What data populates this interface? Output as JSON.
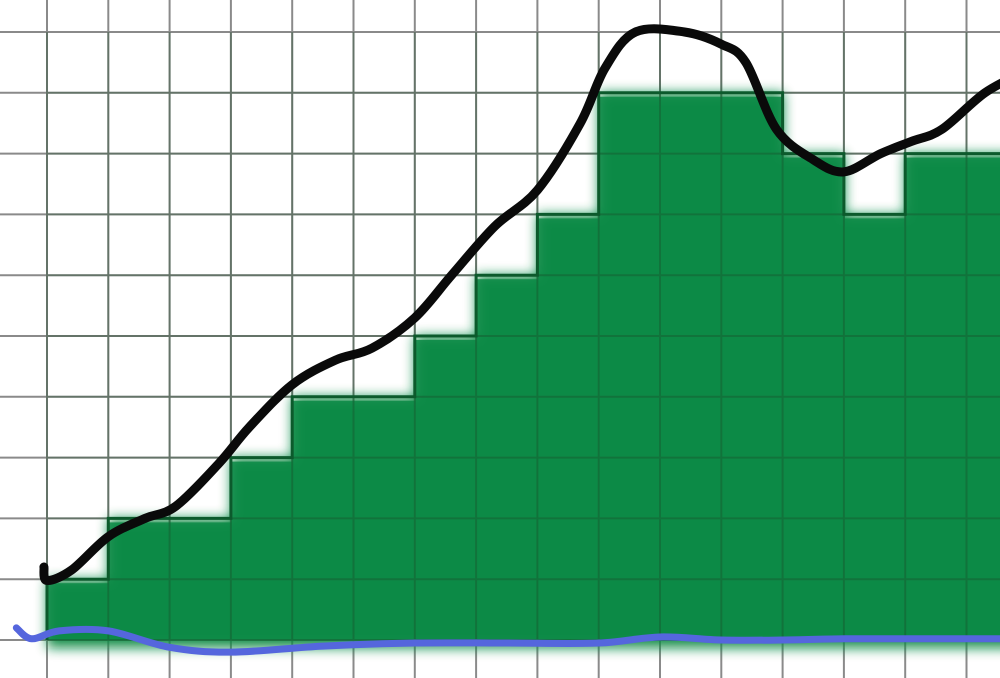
{
  "chart_data": {
    "type": "area",
    "grid": true,
    "grid_cols": 16,
    "grid_rows": 11,
    "steps": [
      {
        "col": 0,
        "height": 1
      },
      {
        "col": 1,
        "height": 2
      },
      {
        "col": 2,
        "height": 2
      },
      {
        "col": 3,
        "height": 3
      },
      {
        "col": 4,
        "height": 4
      },
      {
        "col": 5,
        "height": 4
      },
      {
        "col": 6,
        "height": 5
      },
      {
        "col": 7,
        "height": 6
      },
      {
        "col": 8,
        "height": 7
      },
      {
        "col": 9,
        "height": 9
      },
      {
        "col": 10,
        "height": 9
      },
      {
        "col": 11,
        "height": 9
      },
      {
        "col": 12,
        "height": 8
      },
      {
        "col": 13,
        "height": 7
      },
      {
        "col": 14,
        "height": 8
      },
      {
        "col": 15,
        "height": 8
      }
    ],
    "curves": [
      {
        "color": "#0a0a0a",
        "points": [
          [
            -0.05,
            1.2
          ],
          [
            0.0,
            0.98
          ],
          [
            0.4,
            1.15
          ],
          [
            1.0,
            1.7
          ],
          [
            1.6,
            2.0
          ],
          [
            2.1,
            2.2
          ],
          [
            2.8,
            2.9
          ],
          [
            3.3,
            3.5
          ],
          [
            4.0,
            4.2
          ],
          [
            4.7,
            4.6
          ],
          [
            5.3,
            4.8
          ],
          [
            6.0,
            5.3
          ],
          [
            6.6,
            6.0
          ],
          [
            7.3,
            6.8
          ],
          [
            8.0,
            7.4
          ],
          [
            8.7,
            8.5
          ],
          [
            9.1,
            9.4
          ],
          [
            9.6,
            10.0
          ],
          [
            10.4,
            10.0
          ],
          [
            11.0,
            9.8
          ],
          [
            11.4,
            9.5
          ],
          [
            11.9,
            8.4
          ],
          [
            12.5,
            7.9
          ],
          [
            13.0,
            7.7
          ],
          [
            13.6,
            8.0
          ],
          [
            14.1,
            8.2
          ],
          [
            14.6,
            8.4
          ],
          [
            15.3,
            9.0
          ],
          [
            15.95,
            9.35
          ]
        ]
      },
      {
        "color": "#5566dd",
        "points": [
          [
            -0.5,
            0.2
          ],
          [
            -0.25,
            0.02
          ],
          [
            0.2,
            0.15
          ],
          [
            1.0,
            0.15
          ],
          [
            2.0,
            -0.12
          ],
          [
            3.0,
            -0.2
          ],
          [
            4.5,
            -0.1
          ],
          [
            6.0,
            -0.05
          ],
          [
            7.5,
            -0.05
          ],
          [
            9.0,
            -0.05
          ],
          [
            10.0,
            0.05
          ],
          [
            11.0,
            0.0
          ],
          [
            12.0,
            0.0
          ],
          [
            13.0,
            0.02
          ],
          [
            14.0,
            0.02
          ],
          [
            15.95,
            0.02
          ]
        ]
      }
    ],
    "fill_color": "#0b8a45",
    "step_outline_color": "#0c5a2c"
  }
}
